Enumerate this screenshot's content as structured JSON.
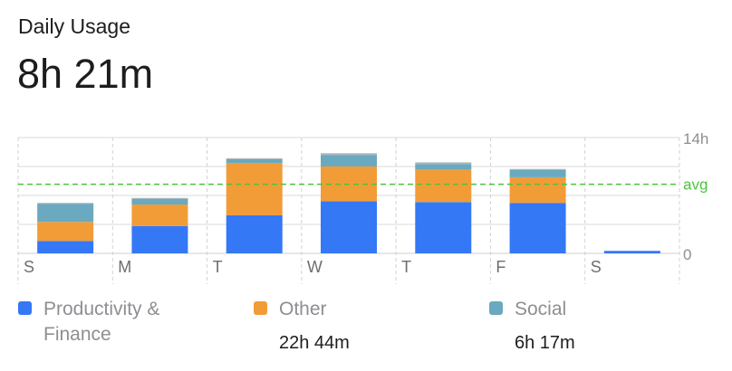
{
  "header": {
    "title": "Daily Usage",
    "total": "8h 21m"
  },
  "colors": {
    "productivity": "#3478f6",
    "other": "#f29c38",
    "social": "#6aa9bf",
    "extra": "#aab2b8",
    "average": "#4cc43e",
    "grid": "#d8d8d8",
    "axis_text": "#8e8e93"
  },
  "legend": [
    {
      "key": "productivity",
      "label": "Productivity & Finance",
      "value": ""
    },
    {
      "key": "other",
      "label": "Other",
      "value": "22h 44m"
    },
    {
      "key": "social",
      "label": "Social",
      "value": "6h 17m"
    }
  ],
  "chart_data": {
    "type": "bar",
    "stacked": true,
    "categories": [
      "S",
      "M",
      "T",
      "W",
      "T",
      "F",
      "S"
    ],
    "series": [
      {
        "name": "Productivity & Finance",
        "color_key": "productivity",
        "values": [
          1.5,
          3.3,
          4.6,
          6.3,
          6.2,
          6.1,
          0.3
        ]
      },
      {
        "name": "Other",
        "color_key": "other",
        "values": [
          2.3,
          2.6,
          6.3,
          4.2,
          3.9,
          3.1,
          0
        ]
      },
      {
        "name": "Social",
        "color_key": "social",
        "values": [
          2.2,
          0.7,
          0.5,
          1.4,
          0.7,
          0.9,
          0
        ]
      },
      {
        "color_key": "extra",
        "values": [
          0.1,
          0.1,
          0.1,
          0.2,
          0.2,
          0.1,
          0
        ]
      }
    ],
    "ylim": [
      0,
      14
    ],
    "y_ticks": [
      {
        "value": 14,
        "label": "14h"
      },
      {
        "value": 0,
        "label": "0"
      }
    ],
    "average": {
      "value": 8.35,
      "label": "avg"
    },
    "grid": true
  }
}
